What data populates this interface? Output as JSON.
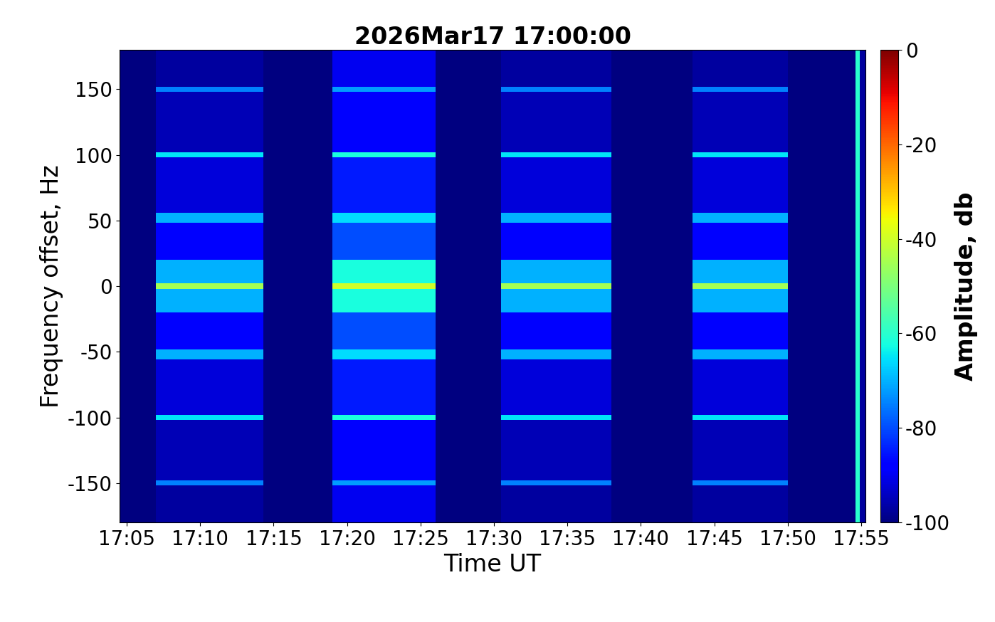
{
  "chart_data": {
    "type": "heatmap",
    "title": "2026Mar17 17:00:00",
    "x_label": "Time UT",
    "y_label": "Frequency offset, Hz",
    "xlim": [
      4.5,
      55.3
    ],
    "xticks": [
      {
        "value": 5,
        "label": "17:05"
      },
      {
        "value": 10,
        "label": "17:10"
      },
      {
        "value": 15,
        "label": "17:15"
      },
      {
        "value": 20,
        "label": "17:20"
      },
      {
        "value": 25,
        "label": "17:25"
      },
      {
        "value": 30,
        "label": "17:30"
      },
      {
        "value": 35,
        "label": "17:35"
      },
      {
        "value": 40,
        "label": "17:40"
      },
      {
        "value": 45,
        "label": "17:45"
      },
      {
        "value": 50,
        "label": "17:50"
      },
      {
        "value": 55,
        "label": "17:55"
      }
    ],
    "ylim": [
      -180,
      180
    ],
    "yticks": [
      -150,
      -100,
      -50,
      0,
      50,
      100,
      150
    ],
    "x_edges": [
      4.5,
      7,
      14.3,
      19,
      26,
      30.5,
      38,
      43.5,
      50,
      54.6,
      54.9,
      55.3
    ],
    "y_edges": [
      -180,
      -152,
      -148,
      -102,
      -98,
      -56,
      -48,
      -20,
      -2,
      2,
      20,
      48,
      56,
      98,
      102,
      148,
      152,
      180
    ],
    "z": [
      [
        -100,
        -97,
        -100,
        -90,
        -100,
        -97,
        -100,
        -97,
        -100,
        -60,
        -97
      ],
      [
        -100,
        -75,
        -100,
        -72,
        -100,
        -75,
        -100,
        -75,
        -100,
        -60,
        -97
      ],
      [
        -100,
        -95,
        -100,
        -88,
        -100,
        -95,
        -100,
        -95,
        -100,
        -60,
        -97
      ],
      [
        -100,
        -65,
        -100,
        -62,
        -100,
        -65,
        -100,
        -65,
        -100,
        -60,
        -97
      ],
      [
        -100,
        -92,
        -100,
        -85,
        -100,
        -92,
        -100,
        -92,
        -100,
        -60,
        -97
      ],
      [
        -100,
        -70,
        -100,
        -66,
        -100,
        -70,
        -100,
        -70,
        -100,
        -60,
        -97
      ],
      [
        -100,
        -88,
        -100,
        -80,
        -100,
        -88,
        -100,
        -88,
        -100,
        -60,
        -97
      ],
      [
        -100,
        -70,
        -100,
        -62,
        -100,
        -70,
        -100,
        -70,
        -100,
        -60,
        -97
      ],
      [
        -100,
        -45,
        -100,
        -40,
        -100,
        -45,
        -100,
        -45,
        -100,
        -60,
        -97
      ],
      [
        -100,
        -70,
        -100,
        -62,
        -100,
        -70,
        -100,
        -70,
        -100,
        -60,
        -97
      ],
      [
        -100,
        -88,
        -100,
        -80,
        -100,
        -88,
        -100,
        -88,
        -100,
        -60,
        -97
      ],
      [
        -100,
        -70,
        -100,
        -66,
        -100,
        -70,
        -100,
        -70,
        -100,
        -60,
        -97
      ],
      [
        -100,
        -92,
        -100,
        -85,
        -100,
        -92,
        -100,
        -92,
        -100,
        -60,
        -97
      ],
      [
        -100,
        -65,
        -100,
        -62,
        -100,
        -65,
        -100,
        -65,
        -100,
        -60,
        -97
      ],
      [
        -100,
        -95,
        -100,
        -88,
        -100,
        -95,
        -100,
        -95,
        -100,
        -60,
        -97
      ],
      [
        -100,
        -75,
        -100,
        -72,
        -100,
        -75,
        -100,
        -75,
        -100,
        -60,
        -97
      ],
      [
        -100,
        -97,
        -100,
        -90,
        -100,
        -97,
        -100,
        -97,
        -100,
        -60,
        -97
      ]
    ],
    "colorbar": {
      "label": "Amplitude, db",
      "lim": [
        -100,
        0
      ],
      "ticks": [
        0,
        -20,
        -40,
        -60,
        -80,
        -100
      ]
    }
  }
}
